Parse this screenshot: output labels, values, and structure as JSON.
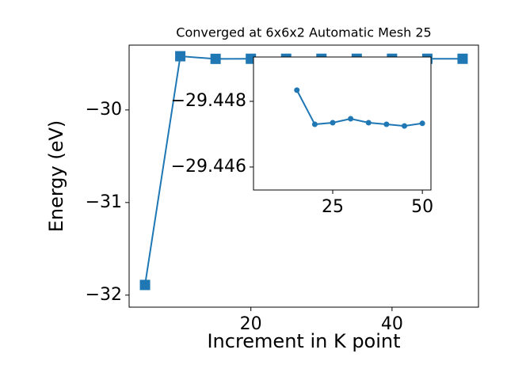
{
  "chart_data": [
    {
      "type": "line",
      "title": "Converged at 6x6x2 Automatic Mesh 25",
      "xlabel": "Increment in K point",
      "ylabel": "Energy (eV)",
      "x": [
        5,
        10,
        15,
        20,
        25,
        30,
        35,
        40,
        45,
        50
      ],
      "series": [
        {
          "color": "#1f77b4",
          "marker": "square",
          "values": [
            -31.89,
            -29.42,
            -29.44834,
            -29.4473,
            -29.44735,
            -29.44747,
            -29.44735,
            -29.4473,
            -29.44725,
            -29.44733
          ]
        }
      ],
      "xlim": [
        2.75,
        52.25
      ],
      "xticks": [
        20,
        40
      ],
      "ylim": [
        -32.13,
        -29.3
      ],
      "yticks": [
        {
          "value": -32,
          "label": "−32"
        },
        {
          "value": -31,
          "label": "−31"
        },
        {
          "value": -30,
          "label": "−30"
        }
      ],
      "grid": false
    },
    {
      "type": "line",
      "x": [
        15,
        20,
        25,
        30,
        35,
        40,
        45,
        50
      ],
      "series": [
        {
          "color": "#1f77b4",
          "marker": "circle",
          "values": [
            -29.44834,
            -29.4473,
            -29.44735,
            -29.44747,
            -29.44735,
            -29.4473,
            -29.44725,
            -29.44733
          ]
        }
      ],
      "xlim": [
        2.9,
        52.4
      ],
      "xticks": [
        25,
        50
      ],
      "ylim": [
        -29.44935,
        -29.4453
      ],
      "y_inverted": true,
      "yticks": [
        {
          "value": -29.448,
          "label": "−29.448"
        },
        {
          "value": -29.446,
          "label": "−29.446"
        }
      ],
      "grid": false
    }
  ]
}
